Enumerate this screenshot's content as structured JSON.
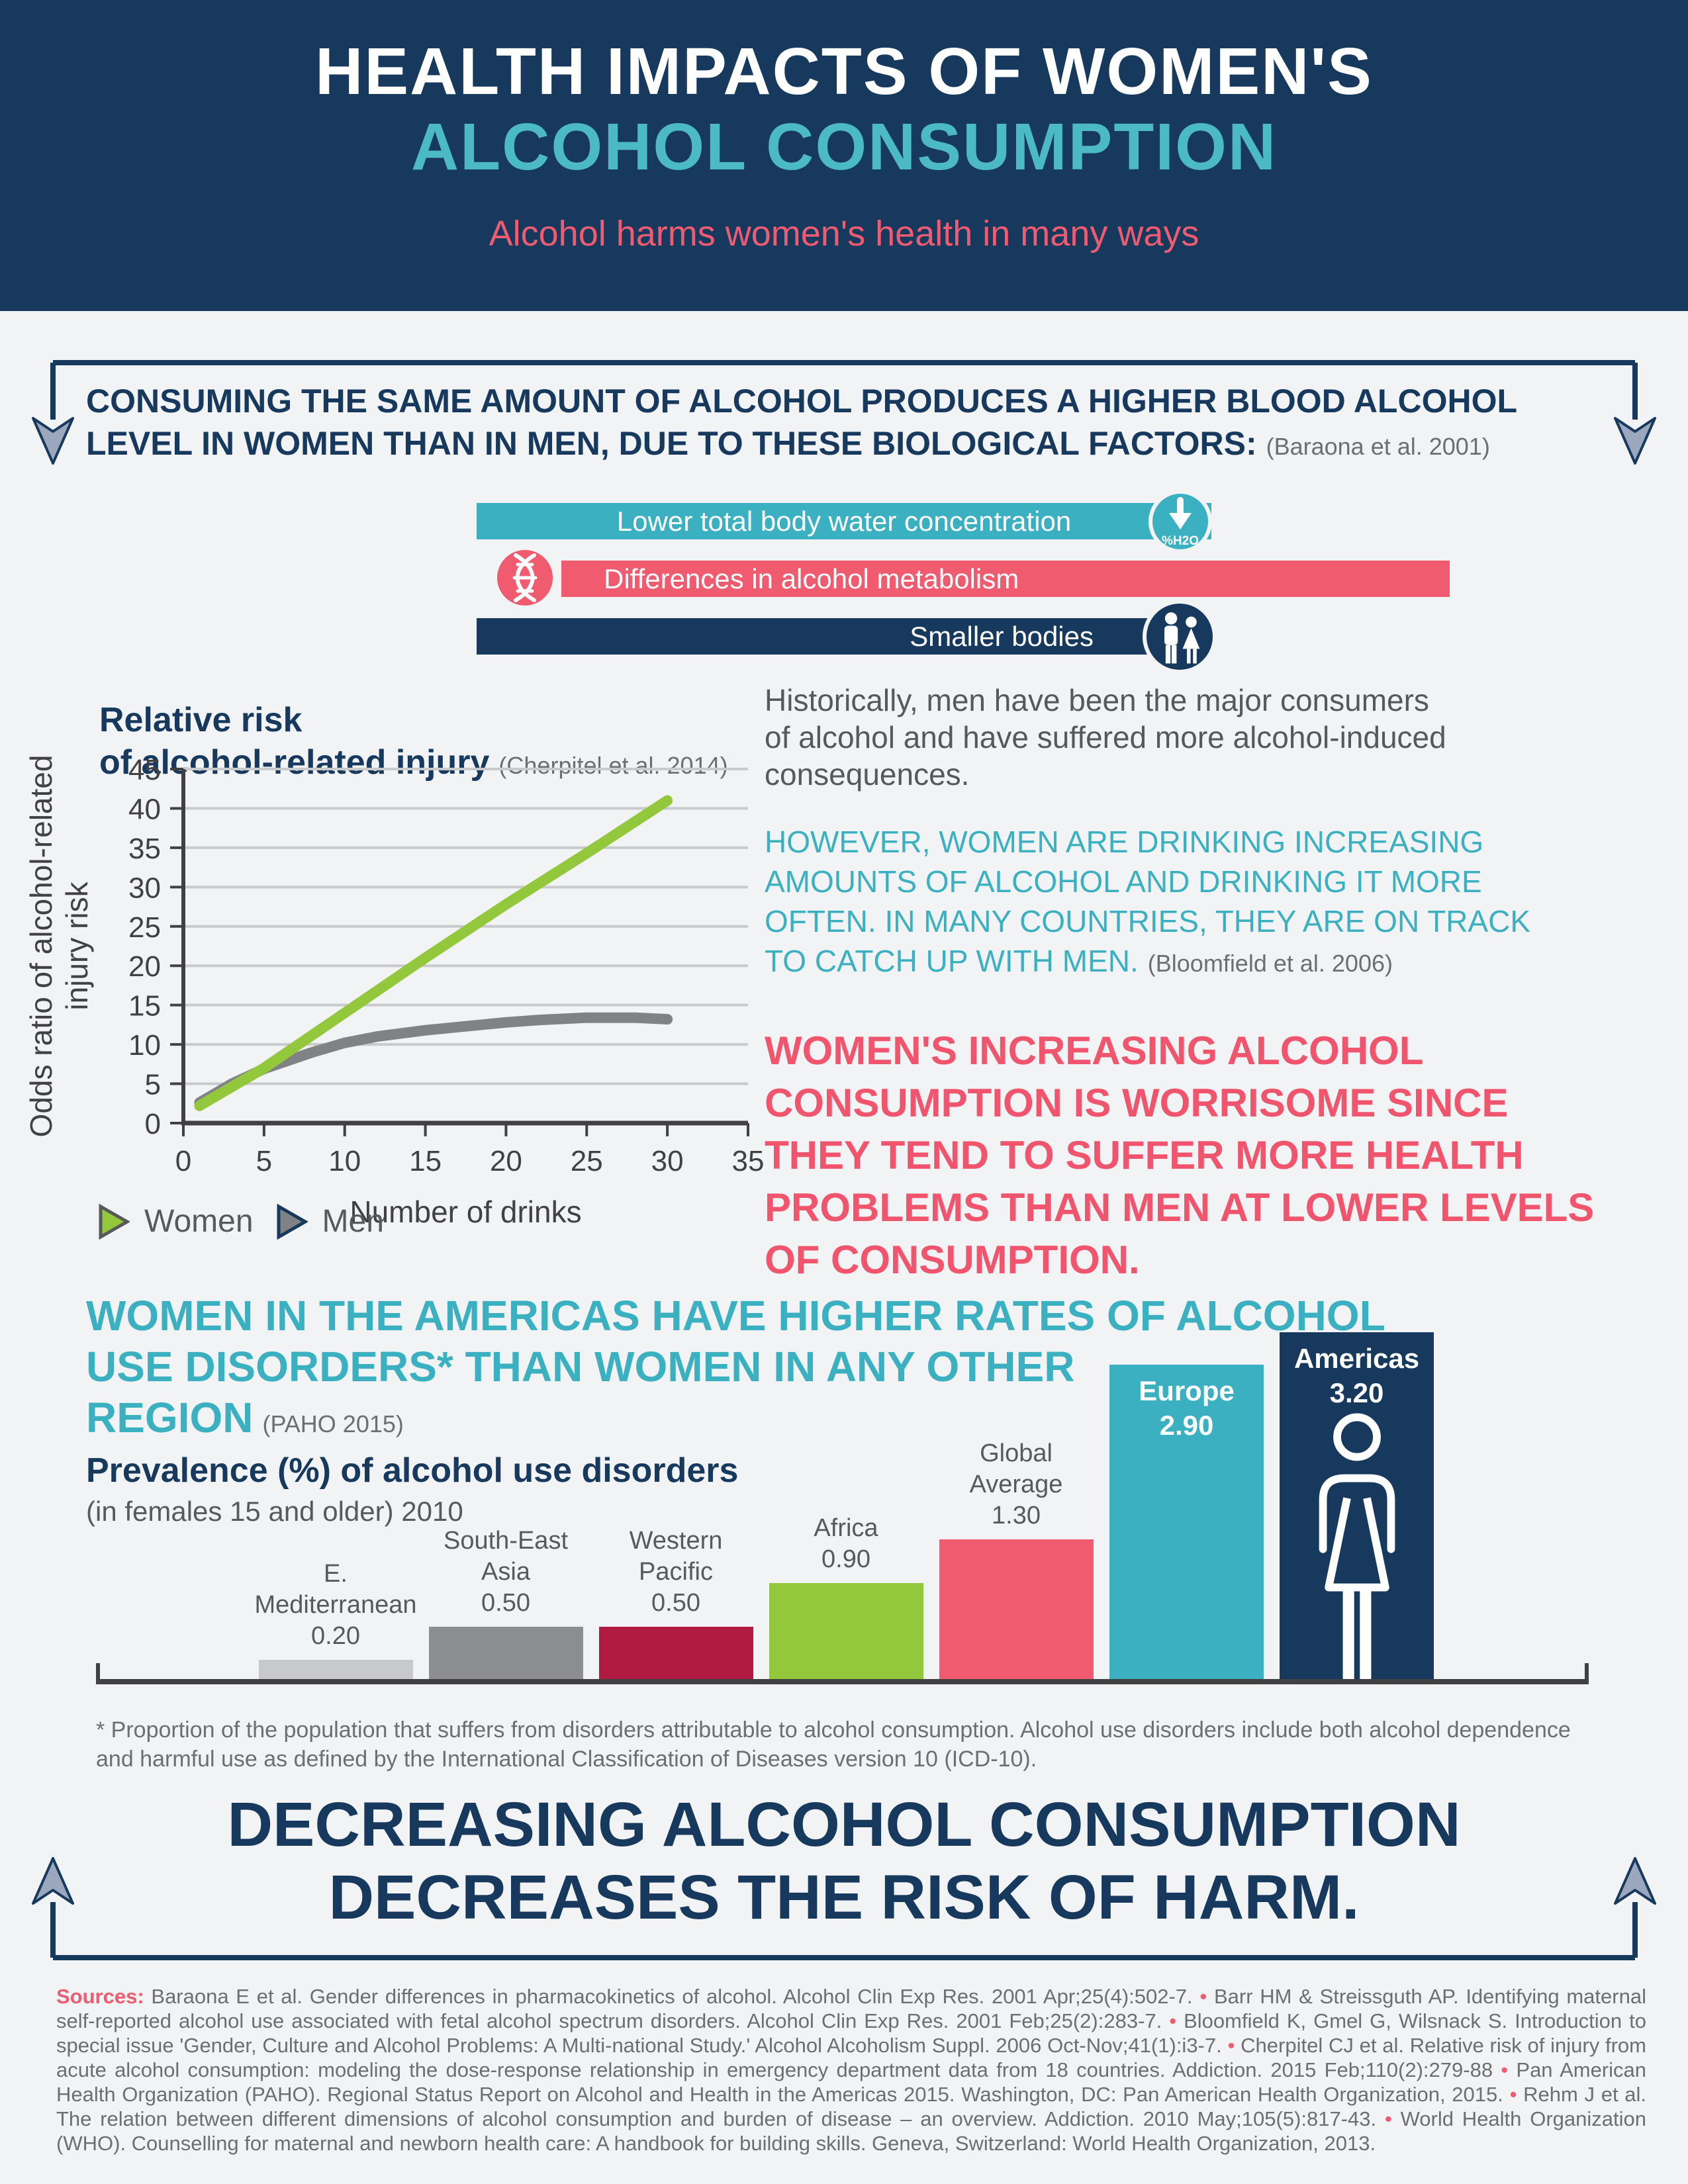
{
  "colors": {
    "navy": "#17395d",
    "teal": "#3ab0c0",
    "teal_light": "#4cb9c6",
    "pink": "#f05b70",
    "pink_text": "#f0556d",
    "green": "#93c83d",
    "gray_line": "#808285",
    "axis": "#414042",
    "grid": "#c9cacb",
    "bar_light_gray": "#c8c9cb",
    "bar_mid_gray": "#8b8d8f",
    "bar_crimson": "#b11b42",
    "background": "#f2f3f4",
    "arrowhead": "#9ba7bc"
  },
  "header": {
    "title_line1": "HEALTH IMPACTS OF WOMEN'S",
    "title_line2": "ALCOHOL CONSUMPTION",
    "subtitle": "Alcohol harms women's health in many ways"
  },
  "factors_section": {
    "heading": "CONSUMING THE SAME AMOUNT OF ALCOHOL PRODUCES A HIGHER BLOOD ALCOHOL\nLEVEL IN WOMEN THAN IN MEN, DUE TO THESE BIOLOGICAL FACTORS:",
    "citation": "(Baraona et al. 2001)",
    "factors": [
      {
        "label": "Lower total body water concentration",
        "color": "#3ab0c0",
        "icon": "down-arrow-h2o-icon",
        "icon_text": "%H2O",
        "icon_side": "right"
      },
      {
        "label": "Differences in alcohol metabolism",
        "color": "#f05b70",
        "icon": "dna-icon",
        "icon_side": "left"
      },
      {
        "label": "Smaller bodies",
        "color": "#17395d",
        "icon": "man-woman-icon",
        "icon_side": "right"
      }
    ]
  },
  "injury_chart": {
    "title": "Relative risk\nof alcohol-related injury",
    "citation": "(Cherpitel et al. 2014)"
  },
  "narrative": {
    "para1": "Historically, men have been the major consumers\nof alcohol and have suffered more alcohol-induced\nconsequences.",
    "para2": "HOWEVER, WOMEN ARE DRINKING INCREASING\nAMOUNTS OF ALCOHOL AND DRINKING IT MORE\nOFTEN. IN MANY COUNTRIES, THEY ARE ON TRACK\nTO CATCH UP WITH MEN.",
    "para2_citation": "(Bloomfield et al. 2006)",
    "para3": "WOMEN'S INCREASING ALCOHOL\nCONSUMPTION IS WORRISOME SINCE\nTHEY TEND TO SUFFER MORE HEALTH\nPROBLEMS THAN MEN AT LOWER LEVELS\nOF CONSUMPTION."
  },
  "disorders_section": {
    "heading": "WOMEN IN THE AMERICAS HAVE HIGHER RATES OF ALCOHOL\nUSE DISORDERS* THAN WOMEN IN ANY OTHER\nREGION",
    "citation": "(PAHO 2015)",
    "chart_title": "Prevalence (%) of alcohol use disorders",
    "chart_subtitle": "(in females 15 and older) 2010",
    "footnote": "* Proportion of the population that suffers from disorders attributable to alcohol consumption. Alcohol use disorders include both alcohol dependence\nand harmful use as defined by the International Classification of Diseases version 10 (ICD-10)."
  },
  "closing": {
    "heading": "DECREASING ALCOHOL CONSUMPTION\nDECREASES THE RISK OF HARM."
  },
  "sources": {
    "label": "Sources:",
    "items": [
      "Baraona E et al. Gender differences in pharmacokinetics of alcohol. Alcohol Clin Exp Res. 2001 Apr;25(4):502-7.",
      "Barr HM & Streissguth AP. Identifying maternal self-reported alcohol use associated with fetal alcohol spectrum disorders. Alcohol Clin Exp Res. 2001 Feb;25(2):283-7.",
      "Bloomfield K, Gmel G, Wilsnack S. Introduction to special issue 'Gender, Culture and Alcohol Problems: A Multi-national Study.' Alcohol Alcoholism Suppl. 2006 Oct-Nov;41(1):i3-7.",
      "Cherpitel CJ et al. Relative risk of injury from acute alcohol consumption: modeling the dose-response relationship in emergency department data from 18 countries. Addiction. 2015 Feb;110(2):279-88",
      "Pan American Health Organization (PAHO). Regional Status Report on Alcohol and Health in the Americas 2015. Washington, DC: Pan American Health Organization, 2015.",
      "Rehm J et al. The relation between different dimensions of alcohol consumption and burden of disease – an overview. Addiction. 2010 May;105(5):817-43.",
      "World Health Organization (WHO). Counselling for maternal and newborn health care: A handbook for building skills. Geneva, Switzerland: World Health Organization, 2013."
    ]
  },
  "chart_data": [
    {
      "type": "line",
      "title": "Relative risk of alcohol-related injury",
      "citation": "(Cherpitel et al. 2014)",
      "xlabel": "Number of drinks",
      "ylabel": "Odds ratio of alcohol-related injury risk",
      "ylabel_lines": [
        "Odds ratio of alcohol-related",
        "injury risk"
      ],
      "xlim": [
        0,
        35
      ],
      "ylim": [
        0,
        45
      ],
      "xticks": [
        0,
        5,
        10,
        15,
        20,
        25,
        30,
        35
      ],
      "yticks": [
        0,
        5,
        10,
        15,
        20,
        25,
        30,
        35,
        40,
        45
      ],
      "grid": true,
      "legend_position": "bottom-left",
      "series": [
        {
          "name": "Women",
          "color": "#93c83d",
          "tri_stroke": "#58595b",
          "points": [
            [
              1,
              2.2
            ],
            [
              5,
              7
            ],
            [
              10,
              14
            ],
            [
              15,
              21
            ],
            [
              20,
              27.8
            ],
            [
              25,
              34.3
            ],
            [
              30,
              41
            ]
          ]
        },
        {
          "name": "Men",
          "color": "#808285",
          "tri_stroke": "#17395d",
          "points": [
            [
              1,
              2.6
            ],
            [
              3,
              5
            ],
            [
              5,
              6.9
            ],
            [
              8,
              9
            ],
            [
              10,
              10.2
            ],
            [
              12,
              11
            ],
            [
              15,
              11.8
            ],
            [
              18,
              12.4
            ],
            [
              20,
              12.8
            ],
            [
              22,
              13.1
            ],
            [
              25,
              13.4
            ],
            [
              28,
              13.4
            ],
            [
              30,
              13.2
            ]
          ]
        }
      ]
    },
    {
      "type": "bar",
      "title": "Prevalence (%) of alcohol use disorders",
      "subtitle": "(in females 15 and older) 2010",
      "categories": [
        "E. Mediterranean",
        "South-East Asia",
        "Western Pacific",
        "Africa",
        "Global Average",
        "Europe",
        "Americas"
      ],
      "values": [
        0.2,
        0.5,
        0.5,
        0.9,
        1.3,
        2.9,
        3.2
      ],
      "value_labels": [
        "0.20",
        "0.50",
        "0.50",
        "0.90",
        "1.30",
        "2.90",
        "3.20"
      ],
      "label_lines": [
        "E.\nMediterranean",
        "South-East\nAsia",
        "Western\nPacific",
        "Africa",
        "Global\nAverage",
        "Europe",
        "Americas"
      ],
      "colors": [
        "#c8c9cb",
        "#8b8d8f",
        "#b11b42",
        "#93c83d",
        "#f05b70",
        "#3ab0c0",
        "#17395d"
      ],
      "label_inside": [
        false,
        false,
        false,
        false,
        false,
        true,
        true
      ],
      "ylim": [
        0,
        3.4
      ],
      "grid": false
    }
  ]
}
